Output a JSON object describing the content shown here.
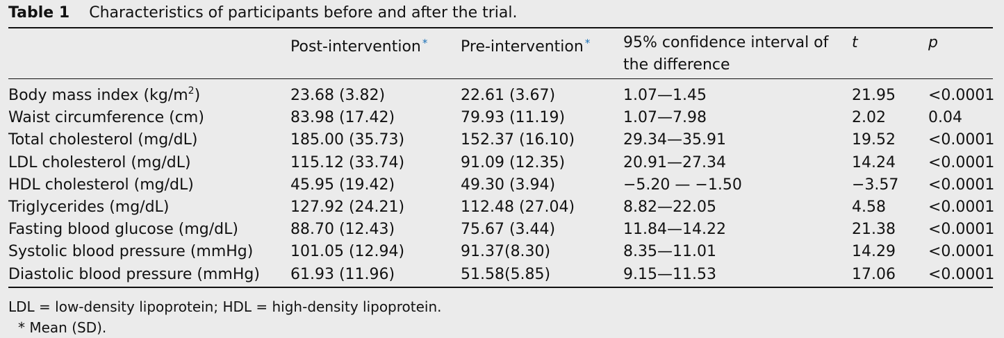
{
  "table": {
    "label": "Table 1",
    "title": "Characteristics of participants before and after the trial.",
    "headers": {
      "post": "Post-intervention",
      "pre": "Pre-intervention",
      "ci": "95% confidence interval of the difference",
      "t": "t",
      "p": "p",
      "asterisk": "*"
    },
    "rows": [
      {
        "name": "Body mass index (kg/m",
        "sup": "2",
        "name_suffix": ")",
        "post": "23.68 (3.82)",
        "pre": "22.61 (3.67)",
        "ci": "1.07—1.45",
        "t": "21.95",
        "p": "<0.0001"
      },
      {
        "name": "Waist circumference (cm)",
        "post": "83.98 (17.42)",
        "pre": "79.93 (11.19)",
        "ci": "1.07—7.98",
        "t": "2.02",
        "p": "0.04"
      },
      {
        "name": "Total cholesterol (mg/dL)",
        "post": "185.00 (35.73)",
        "pre": "152.37 (16.10)",
        "ci": "29.34—35.91",
        "t": "19.52",
        "p": "<0.0001"
      },
      {
        "name": "LDL cholesterol (mg/dL)",
        "post": "115.12 (33.74)",
        "pre": "91.09 (12.35)",
        "ci": "20.91—27.34",
        "t": "14.24",
        "p": "<0.0001"
      },
      {
        "name": "HDL cholesterol (mg/dL)",
        "post": "45.95 (19.42)",
        "pre": "49.30 (3.94)",
        "ci": "−5.20 — −1.50",
        "t": "−3.57",
        "p": "<0.0001"
      },
      {
        "name": "Triglycerides (mg/dL)",
        "post": "127.92 (24.21)",
        "pre": "112.48 (27.04)",
        "ci": "8.82—22.05",
        "t": "4.58",
        "p": "<0.0001"
      },
      {
        "name": "Fasting blood glucose (mg/dL)",
        "post": "88.70 (12.43)",
        "pre": "75.67 (3.44)",
        "ci": "11.84—14.22",
        "t": "21.38",
        "p": "<0.0001"
      },
      {
        "name": "Systolic blood pressure (mmHg)",
        "post": "101.05 (12.94)",
        "pre": "91.37(8.30)",
        "ci": "8.35—11.01",
        "t": "14.29",
        "p": "<0.0001"
      },
      {
        "name": "Diastolic blood pressure (mmHg)",
        "post": "61.93 (11.96)",
        "pre": "51.58(5.85)",
        "ci": "9.15—11.53",
        "t": "17.06",
        "p": "<0.0001"
      }
    ],
    "footnotes": [
      "LDL = low-density lipoprotein; HDL = high-density lipoprotein.",
      "* Mean (SD)."
    ]
  }
}
